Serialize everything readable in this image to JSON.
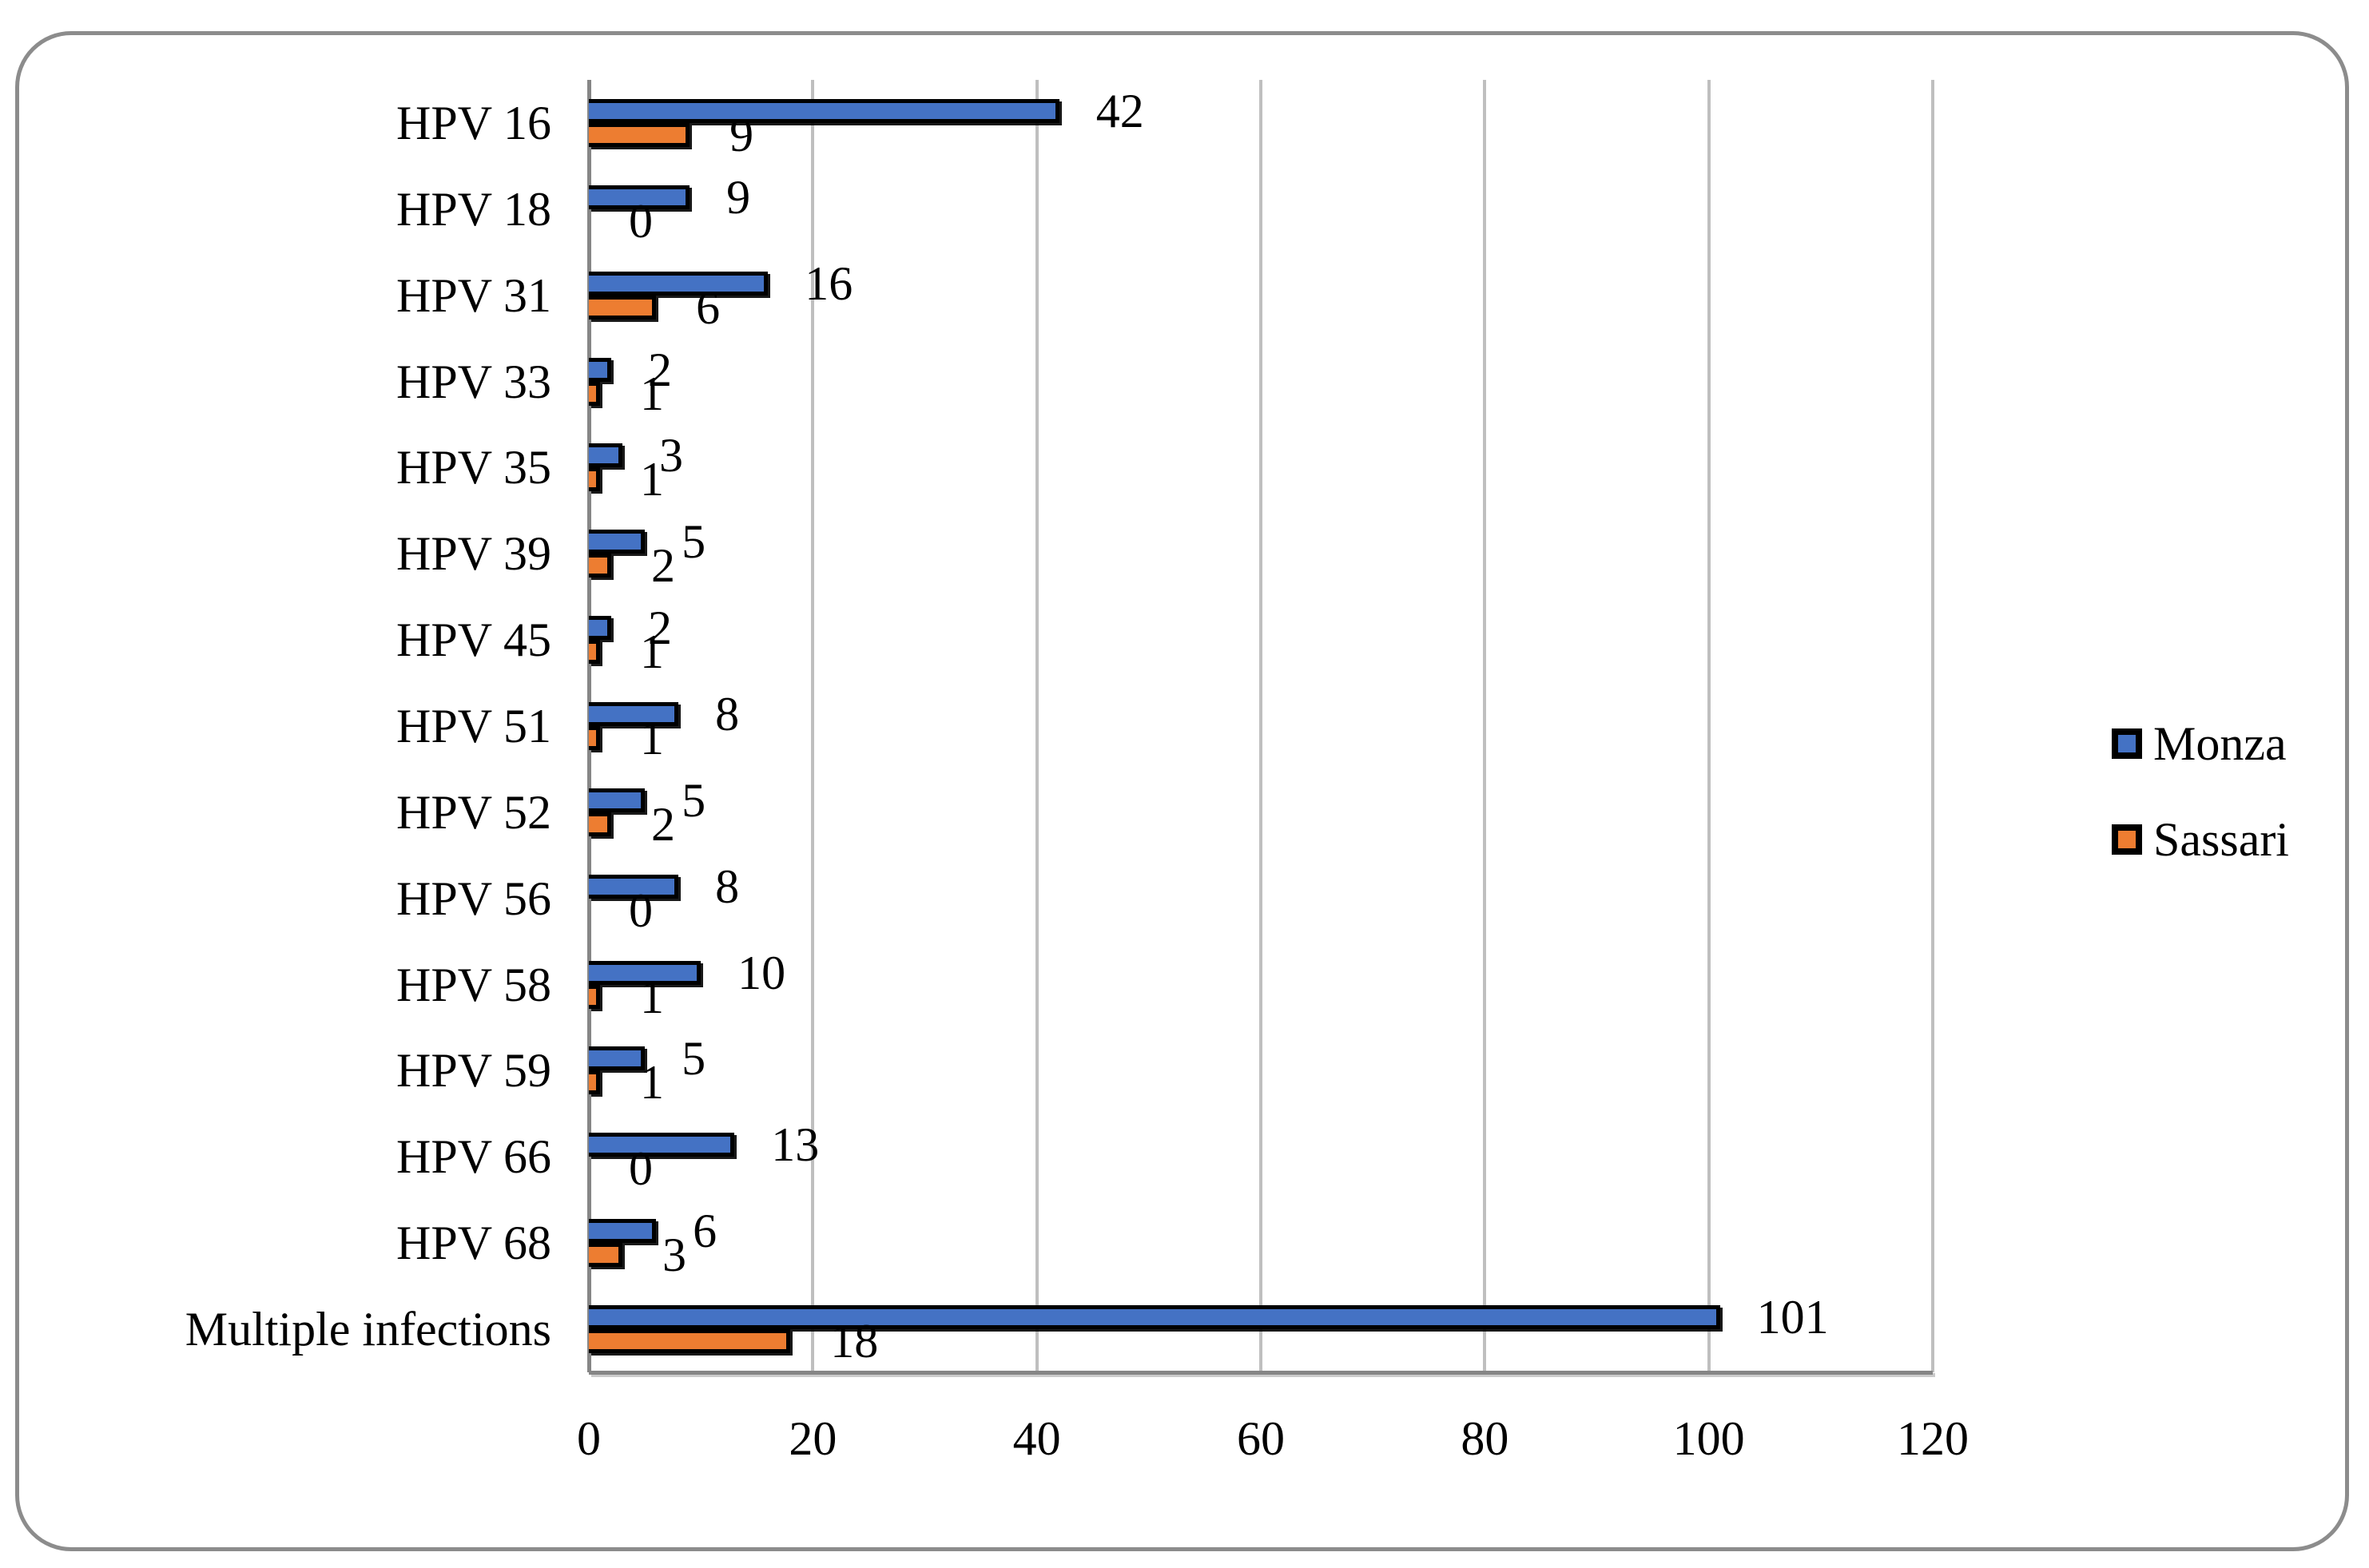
{
  "chart_data": {
    "type": "bar",
    "orientation": "horizontal",
    "title": "",
    "xlabel": "",
    "ylabel": "",
    "categories": [
      "HPV 16",
      "HPV 18",
      "HPV 31",
      "HPV 33",
      "HPV 35",
      "HPV 39",
      "HPV 45",
      "HPV 51",
      "HPV 52",
      "HPV 56",
      "HPV 58",
      "HPV 59",
      "HPV 66",
      "HPV 68",
      "Multiple infections"
    ],
    "series": [
      {
        "name": "Monza",
        "color": "#4472C4",
        "values": [
          42,
          9,
          16,
          2,
          3,
          5,
          2,
          8,
          5,
          8,
          10,
          5,
          13,
          6,
          101
        ]
      },
      {
        "name": "Sassari",
        "color": "#ED7D31",
        "values": [
          9,
          0,
          6,
          1,
          1,
          2,
          1,
          1,
          2,
          0,
          1,
          1,
          0,
          3,
          18
        ]
      }
    ],
    "x_axis": {
      "min": 0,
      "max": 120,
      "ticks": [
        "0",
        "20",
        "40",
        "60",
        "80",
        "100",
        "120"
      ]
    },
    "grid": true,
    "legend_position": "right",
    "value_labels_shown": true
  },
  "legend": {
    "items": [
      {
        "label": "Monza",
        "color": "#4472C4"
      },
      {
        "label": "Sassari",
        "color": "#ED7D31"
      }
    ]
  },
  "colors": {
    "monza": "#4472C4",
    "sassari": "#ED7D31",
    "bar_border": "#000000",
    "gridline": "#BFBFBF",
    "axis_line": "#868686",
    "frame_border": "#8C8C8C",
    "background": "#FFFFFF"
  }
}
